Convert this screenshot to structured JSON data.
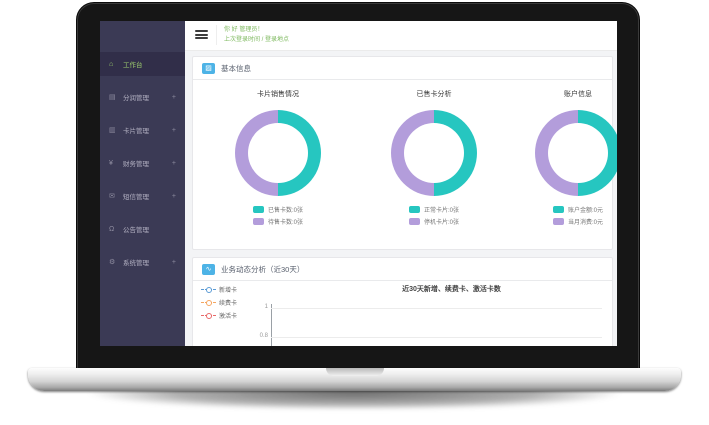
{
  "colors": {
    "sidebar_bg": "#3b3a55",
    "sidebar_active_bg": "#312e49",
    "active_text_green": "#9fd06e",
    "donut_teal": "#26c6c0",
    "donut_purple": "#b39ddb",
    "greeting_green": "#7cb85c",
    "panel_icon_blue": "#4db3e6",
    "trend_blue": "#5b9bd5",
    "trend_orange": "#f5a661",
    "trend_red": "#e86a6a"
  },
  "sidebar": {
    "expand_glyph": "+",
    "items": [
      {
        "label": "工作台",
        "icon": "home-icon",
        "glyph": "⌂",
        "active": true,
        "expandable": false
      },
      {
        "label": "分润管理",
        "icon": "report-icon",
        "glyph": "▤",
        "active": false,
        "expandable": true
      },
      {
        "label": "卡片管理",
        "icon": "card-icon",
        "glyph": "▥",
        "active": false,
        "expandable": true
      },
      {
        "label": "财务管理",
        "icon": "finance-icon",
        "glyph": "¥",
        "active": false,
        "expandable": true
      },
      {
        "label": "短信管理",
        "icon": "mail-icon",
        "glyph": "✉",
        "active": false,
        "expandable": true
      },
      {
        "label": "公告管理",
        "icon": "bell-icon",
        "glyph": "Ω",
        "active": false,
        "expandable": false
      },
      {
        "label": "系统管理",
        "icon": "gear-icon",
        "glyph": "⚙",
        "active": false,
        "expandable": true
      }
    ]
  },
  "header": {
    "greeting_line1": "你 好 管理员！",
    "greeting_line2": "上次登录时间 / 登录地点"
  },
  "panels": {
    "basic_info": {
      "title": "基本信息",
      "icon_glyph": "▨",
      "charts": [
        {
          "title": "卡片销售情况",
          "legend": [
            {
              "label": "已售卡数:0张"
            },
            {
              "label": "待售卡数:0张"
            }
          ]
        },
        {
          "title": "已售卡分析",
          "legend": [
            {
              "label": "正常卡片:0张"
            },
            {
              "label": "停机卡片:0张"
            }
          ]
        },
        {
          "title": "账户信息",
          "legend": [
            {
              "label": "账户金额:0元"
            },
            {
              "label": "当月消费:0元"
            }
          ]
        }
      ]
    },
    "trend": {
      "title": "业务动态分析（近30天）",
      "icon_glyph": "∿",
      "chart_title": "近30天新增、续费卡、激活卡数",
      "legend": [
        {
          "label": "新增卡",
          "color": "#5b9bd5"
        },
        {
          "label": "续费卡",
          "color": "#f5a661"
        },
        {
          "label": "激活卡",
          "color": "#e86a6a"
        }
      ],
      "y_ticks": [
        "1",
        "0.8"
      ]
    }
  },
  "chart_data": [
    {
      "type": "pie",
      "subtype": "donut",
      "title": "卡片销售情况",
      "labels": [
        "已售卡数",
        "待售卡数"
      ],
      "values": [
        0,
        0
      ],
      "units": "张",
      "display_split_pct": [
        50,
        50
      ],
      "colors": [
        "#26c6c0",
        "#b39ddb"
      ],
      "legend_position": "bottom"
    },
    {
      "type": "pie",
      "subtype": "donut",
      "title": "已售卡分析",
      "labels": [
        "正常卡片",
        "停机卡片"
      ],
      "values": [
        0,
        0
      ],
      "units": "张",
      "display_split_pct": [
        50,
        50
      ],
      "colors": [
        "#26c6c0",
        "#b39ddb"
      ],
      "legend_position": "bottom"
    },
    {
      "type": "pie",
      "subtype": "donut",
      "title": "账户信息",
      "labels": [
        "账户金额",
        "当月消费"
      ],
      "values": [
        0,
        0
      ],
      "units": "元",
      "display_split_pct": [
        50,
        50
      ],
      "colors": [
        "#26c6c0",
        "#b39ddb"
      ],
      "legend_position": "bottom"
    },
    {
      "type": "line",
      "title": "近30天新增、续费卡、激活卡数",
      "series": [
        {
          "name": "新增卡",
          "color": "#5b9bd5",
          "values": []
        },
        {
          "name": "续费卡",
          "color": "#f5a661",
          "values": []
        },
        {
          "name": "激活卡",
          "color": "#e86a6a",
          "values": []
        }
      ],
      "y_ticks_visible": [
        1,
        0.8
      ],
      "legend_position": "left",
      "grid": true,
      "note": "plot area cropped by laptop bezel at bottom; no data points visible"
    }
  ]
}
